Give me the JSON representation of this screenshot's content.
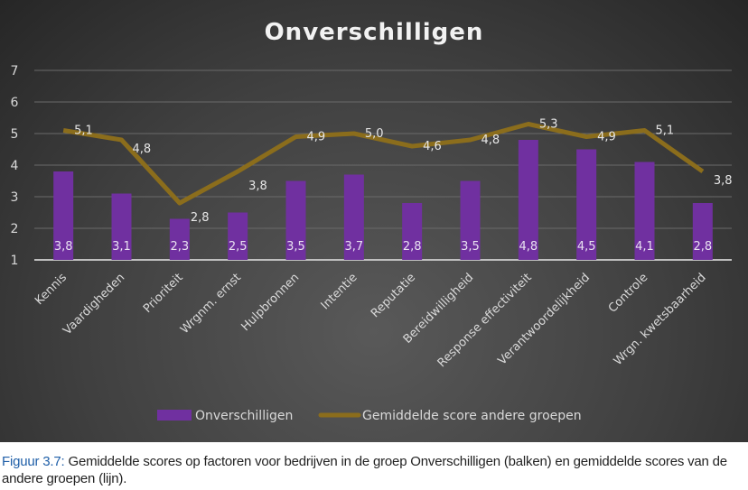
{
  "chart_data": {
    "type": "bar+line",
    "title": "Onverschilligen",
    "categories": [
      "Kennis",
      "Vaardigheden",
      "Prioriteit",
      "Wrgnm. ernst",
      "Hulpbronnen",
      "Intentie",
      "Reputatie",
      "Bereidwilligheid",
      "Response effectiviteit",
      "Verantwoordelijkheid",
      "Controle",
      "Wrgn. kwetsbaarheid"
    ],
    "series": [
      {
        "name": "Onverschilligen",
        "type": "bar",
        "color": "#7030a0",
        "values": [
          3.8,
          3.1,
          2.3,
          2.5,
          3.5,
          3.7,
          2.8,
          3.5,
          4.8,
          4.5,
          4.1,
          2.8
        ],
        "labels": [
          "3,8",
          "3,1",
          "2,3",
          "2,5",
          "3,5",
          "3,7",
          "2,8",
          "3,5",
          "4,8",
          "4,5",
          "4,1",
          "2,8"
        ]
      },
      {
        "name": "Gemiddelde score andere groepen",
        "type": "line",
        "color": "#8b6d1c",
        "values": [
          5.1,
          4.8,
          2.8,
          3.8,
          4.9,
          5.0,
          4.6,
          4.8,
          5.3,
          4.9,
          5.1,
          3.8
        ],
        "labels": [
          "5,1",
          "4,8",
          "2,8",
          "3,8",
          "4,9",
          "5,0",
          "4,6",
          "4,8",
          "5,3",
          "4,9",
          "5,1",
          "3,8"
        ]
      }
    ],
    "ylim": [
      1,
      7
    ],
    "yticks": [
      "1",
      "2",
      "3",
      "4",
      "5",
      "6",
      "7"
    ],
    "grid": true,
    "legend": "bottom"
  },
  "caption": {
    "figure": "Figuur 3.7:",
    "text": " Gemiddelde scores op factoren voor bedrijven in de groep Onverschilligen (balken) en gemiddelde scores van de andere groepen (lijn)."
  }
}
